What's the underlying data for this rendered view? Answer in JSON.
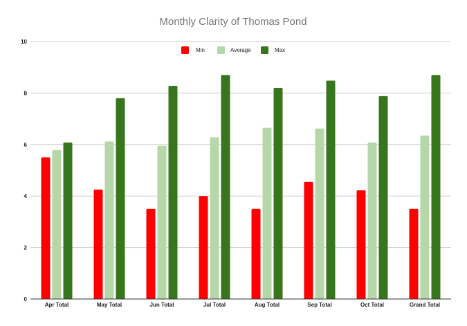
{
  "chart_data": {
    "type": "bar",
    "title": "Monthly Clarity of Thomas Pond",
    "xlabel": "",
    "ylabel": "",
    "ylim": [
      0,
      10
    ],
    "yticks": [
      "0",
      "2",
      "4",
      "6",
      "8",
      "10"
    ],
    "grid": true,
    "legend_position": "top-center",
    "categories": [
      "Apr Total",
      "May Total",
      "Jun Total",
      "Jul Total",
      "Aug Total",
      "Sep Total",
      "Oct Total",
      "Grand Total"
    ],
    "series": [
      {
        "name": "Min",
        "color": "#ff0000",
        "values": [
          5.5,
          4.25,
          3.5,
          4.0,
          3.5,
          4.55,
          4.22,
          3.5
        ]
      },
      {
        "name": "Average",
        "color": "#b6d7a8",
        "values": [
          5.78,
          6.12,
          5.95,
          6.28,
          6.65,
          6.62,
          6.08,
          6.35
        ]
      },
      {
        "name": "Max",
        "color": "#38761d",
        "values": [
          6.08,
          7.8,
          8.28,
          8.7,
          8.2,
          8.48,
          7.88,
          8.7
        ]
      }
    ]
  }
}
